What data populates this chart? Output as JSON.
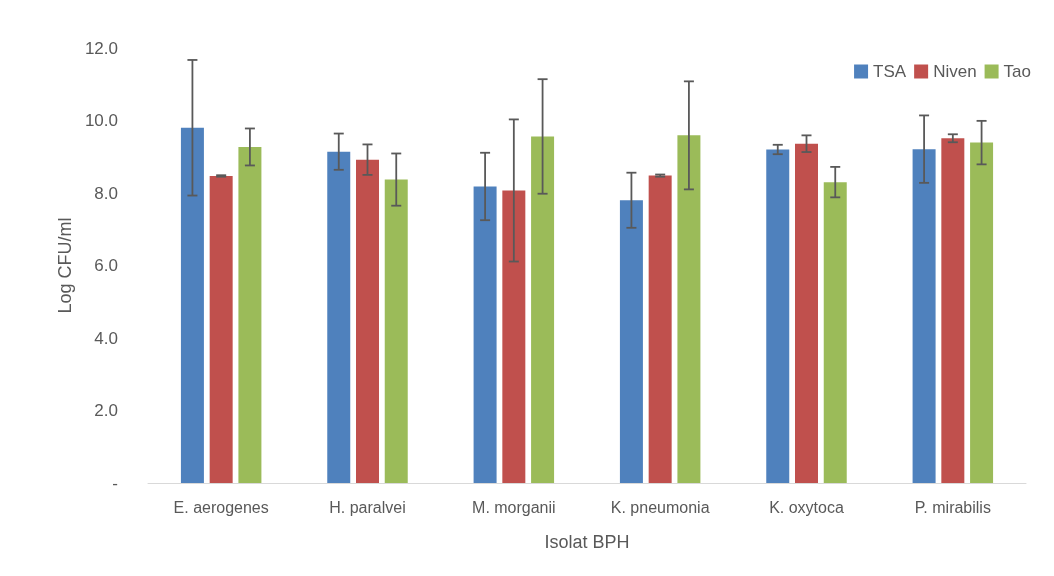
{
  "chart_data": {
    "type": "bar",
    "xlabel": "Isolat BPH",
    "ylabel": "Log CFU/ml",
    "categories": [
      "E. aerogenes",
      "H. paralvei",
      "M. morganii",
      "K. pneumonia",
      "K. oxytoca",
      "P. mirabilis"
    ],
    "series": [
      {
        "name": "TSA",
        "color": "#4f81bd",
        "values": [
          9.8,
          9.14,
          8.18,
          7.8,
          9.2,
          9.21
        ],
        "errors": [
          1.87,
          0.5,
          0.93,
          0.76,
          0.13,
          0.93
        ]
      },
      {
        "name": "Niven",
        "color": "#c0504d",
        "values": [
          8.47,
          8.92,
          8.07,
          8.48,
          9.36,
          9.51
        ],
        "errors": [
          0.02,
          0.42,
          1.96,
          0.03,
          0.23,
          0.11
        ]
      },
      {
        "name": "Tao",
        "color": "#9bbb59",
        "values": [
          9.27,
          8.37,
          9.56,
          9.59,
          8.3,
          9.39
        ],
        "errors": [
          0.51,
          0.72,
          1.58,
          1.49,
          0.42,
          0.6
        ]
      }
    ],
    "ylim": [
      0,
      12
    ],
    "yticks": [
      {
        "value": 0,
        "label": "-"
      },
      {
        "value": 2,
        "label": "2.0"
      },
      {
        "value": 4,
        "label": "4.0"
      },
      {
        "value": 6,
        "label": "6.0"
      },
      {
        "value": 8,
        "label": "8.0"
      },
      {
        "value": 10,
        "label": "10.0"
      },
      {
        "value": 12,
        "label": "12.0"
      }
    ],
    "grid": false,
    "legend": "top right"
  }
}
